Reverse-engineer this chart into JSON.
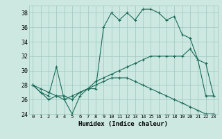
{
  "title": "",
  "xlabel": "Humidex (Indice chaleur)",
  "bg_color": "#cce8e0",
  "line_color": "#1a6b5a",
  "grid_color": "#9dc8c0",
  "xlim": [
    -0.5,
    23.5
  ],
  "ylim": [
    24,
    39
  ],
  "yticks": [
    24,
    26,
    28,
    30,
    32,
    34,
    36,
    38
  ],
  "xtick_labels": [
    "0",
    "1",
    "2",
    "3",
    "4",
    "5",
    "6",
    "7",
    "8",
    "9",
    "10",
    "11",
    "12",
    "13",
    "14",
    "15",
    "16",
    "17",
    "18",
    "19",
    "20",
    "21",
    "22",
    "23"
  ],
  "series1": [
    28,
    27,
    26.5,
    30.5,
    26,
    24,
    26.5,
    27.5,
    27.5,
    36,
    38,
    37,
    38,
    37,
    38.5,
    38.5,
    38,
    37,
    37.5,
    35,
    34.5,
    31.5,
    31,
    26.5
  ],
  "series2": [
    28,
    27,
    26,
    26.5,
    26.5,
    26,
    27,
    27.5,
    28.5,
    29,
    29.5,
    30,
    30.5,
    31,
    31.5,
    32,
    32,
    32,
    32,
    32,
    33,
    31.5,
    26.5,
    26.5
  ],
  "series3": [
    28,
    27.5,
    27,
    26.5,
    26,
    26.5,
    27,
    27.5,
    28,
    28.5,
    29,
    29,
    29,
    28.5,
    28,
    27.5,
    27,
    26.5,
    26,
    25.5,
    25,
    24.5,
    24,
    24
  ]
}
